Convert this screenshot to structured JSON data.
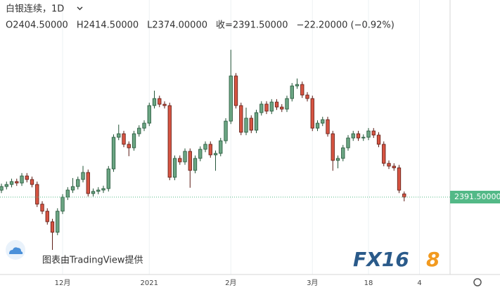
{
  "chart_data": {
    "type": "candlestick",
    "title": "白银连续，1D",
    "header": [
      "O2404.50000",
      "H2414.50000",
      "L2374.00000",
      "收=2391.50000",
      "−22.20000 (−0.92%)"
    ],
    "up_color": "#6ba583",
    "up_border": "#225437",
    "down_color": "#d75442",
    "down_border": "#5b1a13",
    "ohlc": [
      [
        2420,
        2447,
        2408,
        2435
      ],
      [
        2435,
        2455.5,
        2423,
        2443.5
      ],
      [
        2443.5,
        2467.5,
        2431.5,
        2455.5
      ],
      [
        2455.5,
        2467.5,
        2437.5,
        2449.5
      ],
      [
        2449.5,
        2490.5,
        2437.5,
        2478.5
      ],
      [
        2478.5,
        2490.5,
        2452,
        2464
      ],
      [
        2464,
        2476,
        2431.5,
        2443.5
      ],
      [
        2443.5,
        2455.5,
        2350.5,
        2362.5
      ],
      [
        2362.5,
        2374.5,
        2321.5,
        2333.5
      ],
      [
        2333.5,
        2345.5,
        2278,
        2290
      ],
      [
        2290,
        2302,
        2174,
        2246.5
      ],
      [
        2246.5,
        2345.5,
        2234.5,
        2333.5
      ],
      [
        2333.5,
        2403.5,
        2321.5,
        2391.5
      ],
      [
        2391.5,
        2432.5,
        2379.5,
        2420.5
      ],
      [
        2420.5,
        2470,
        2408.5,
        2435
      ],
      [
        2435,
        2476,
        2423,
        2464
      ],
      [
        2464,
        2520,
        2452,
        2493
      ],
      [
        2493,
        2505,
        2394,
        2406
      ],
      [
        2406,
        2427,
        2394,
        2415
      ],
      [
        2415,
        2432.5,
        2403,
        2420.5
      ],
      [
        2420.5,
        2438.5,
        2408.5,
        2426.5
      ],
      [
        2426.5,
        2519.5,
        2414.5,
        2507.5
      ],
      [
        2507.5,
        2650,
        2495.5,
        2638
      ],
      [
        2638,
        2690,
        2626,
        2652.5
      ],
      [
        2652.5,
        2664.5,
        2597,
        2609
      ],
      [
        2609,
        2621,
        2560,
        2594.5
      ],
      [
        2594.5,
        2664.5,
        2582.5,
        2652.5
      ],
      [
        2652.5,
        2687.5,
        2640.5,
        2675.5
      ],
      [
        2675.5,
        2708,
        2663.5,
        2696
      ],
      [
        2696,
        2780.5,
        2684,
        2768.5
      ],
      [
        2768.5,
        2830,
        2756.5,
        2797.5
      ],
      [
        2797.5,
        2809.5,
        2762,
        2774
      ],
      [
        2774,
        2786,
        2756.5,
        2768.5
      ],
      [
        2768.5,
        2780.5,
        2461,
        2473
      ],
      [
        2473,
        2563,
        2461,
        2551
      ],
      [
        2551,
        2563,
        2524.5,
        2536.5
      ],
      [
        2536.5,
        2592,
        2524.5,
        2580
      ],
      [
        2580,
        2592,
        2430,
        2501.5
      ],
      [
        2501.5,
        2563,
        2489.5,
        2551
      ],
      [
        2551,
        2600.5,
        2539,
        2588.5
      ],
      [
        2588.5,
        2621,
        2576.5,
        2609
      ],
      [
        2609,
        2621,
        2553.5,
        2565.5
      ],
      [
        2565.5,
        2583.5,
        2500,
        2571.5
      ],
      [
        2571.5,
        2635.5,
        2559.5,
        2623.5
      ],
      [
        2623.5,
        2716.5,
        2611.5,
        2704.5
      ],
      [
        2704.5,
        2998.5,
        2692.5,
        2890.5
      ],
      [
        2890.5,
        2902.5,
        2756.5,
        2768.5
      ],
      [
        2768.5,
        2780.5,
        2646.5,
        2658.5
      ],
      [
        2658.5,
        2760,
        2646.5,
        2716.5
      ],
      [
        2716.5,
        2728.5,
        2655,
        2667
      ],
      [
        2667,
        2751.5,
        2655,
        2739.5
      ],
      [
        2739.5,
        2786.5,
        2727.5,
        2774.5
      ],
      [
        2774.5,
        2786.5,
        2733.5,
        2745.5
      ],
      [
        2745.5,
        2795,
        2733.5,
        2783
      ],
      [
        2783,
        2795,
        2750.5,
        2762.5
      ],
      [
        2762.5,
        2774.5,
        2742,
        2754
      ],
      [
        2754,
        2809.5,
        2742,
        2797.5
      ],
      [
        2797.5,
        2861.5,
        2785.5,
        2849.5
      ],
      [
        2849.5,
        2880,
        2837.5,
        2855.5
      ],
      [
        2855.5,
        2867.5,
        2800,
        2812
      ],
      [
        2812,
        2824,
        2785.5,
        2797.5
      ],
      [
        2797.5,
        2809.5,
        2663.5,
        2675.5
      ],
      [
        2675.5,
        2708,
        2663.5,
        2696
      ],
      [
        2696,
        2722.5,
        2684,
        2710.5
      ],
      [
        2710.5,
        2722.5,
        2640.5,
        2652.5
      ],
      [
        2652.5,
        2664.5,
        2500,
        2542.5
      ],
      [
        2542.5,
        2563,
        2510,
        2551
      ],
      [
        2551,
        2606.5,
        2539,
        2594.5
      ],
      [
        2594.5,
        2647,
        2582.5,
        2635
      ],
      [
        2635,
        2664.5,
        2623,
        2652.5
      ],
      [
        2652.5,
        2664.5,
        2623,
        2635
      ],
      [
        2635,
        2650,
        2623,
        2638
      ],
      [
        2638,
        2676,
        2626,
        2664
      ],
      [
        2664,
        2676,
        2635,
        2647
      ],
      [
        2647,
        2659,
        2597,
        2609
      ],
      [
        2609,
        2621,
        2518.5,
        2530.5
      ],
      [
        2530.5,
        2542.5,
        2507,
        2519
      ],
      [
        2519,
        2531,
        2500,
        2512
      ],
      [
        2512,
        2524,
        2408,
        2420
      ],
      [
        2404.5,
        2414.5,
        2374,
        2391.5
      ]
    ],
    "xlim": [
      -0.28,
      88
    ],
    "ylim": [
      2072.5,
      3203.5
    ],
    "xticks": [
      {
        "value": 12,
        "label": "12月"
      },
      {
        "value": 29,
        "label": "2021"
      },
      {
        "value": 45,
        "label": "2月"
      },
      {
        "value": 61,
        "label": "3月"
      },
      {
        "value": 72,
        "label": "18"
      },
      {
        "value": 82,
        "label": "4"
      }
    ],
    "grid": true,
    "last_price": {
      "value": 2391.5,
      "label": "2391.50000"
    },
    "last_price_color": "#53b987",
    "watermark": "图表由TradingView提供",
    "logo": [
      "FX16",
      "8"
    ]
  }
}
